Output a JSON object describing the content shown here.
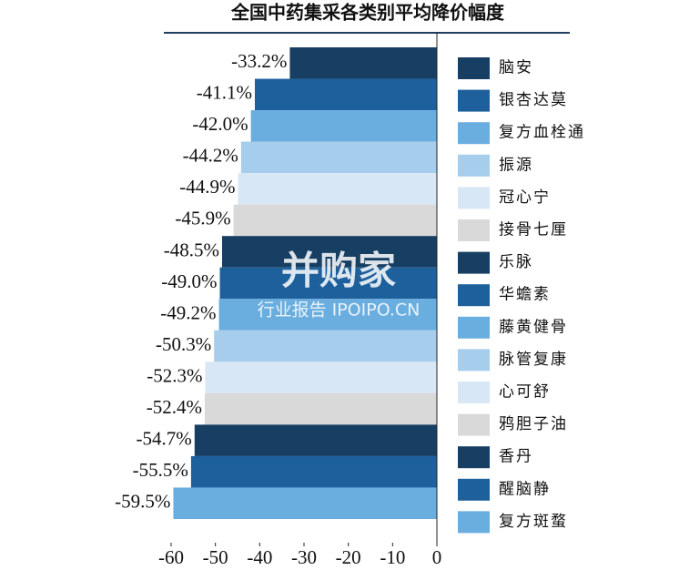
{
  "chart_data": {
    "type": "bar",
    "orientation": "horizontal",
    "title": "全国中药集采各类别平均降价幅度",
    "categories": [
      "脑安",
      "银杏达莫",
      "复方血栓通",
      "振源",
      "冠心宁",
      "接骨七厘",
      "乐脉",
      "华蟾素",
      "藤黄健骨",
      "脉管复康",
      "心可舒",
      "鸦胆子油",
      "香丹",
      "醒脑静",
      "复方斑蝥"
    ],
    "values": [
      -33.2,
      -41.1,
      -42.0,
      -44.2,
      -44.9,
      -45.9,
      -48.5,
      -49.0,
      -49.2,
      -50.3,
      -52.3,
      -52.4,
      -54.7,
      -55.5,
      -59.5
    ],
    "value_labels": [
      "-33.2%",
      "-41.1%",
      "-42.0%",
      "-44.2%",
      "-44.9%",
      "-45.9%",
      "-48.5%",
      "-49.0%",
      "-49.2%",
      "-50.3%",
      "-52.3%",
      "-52.4%",
      "-54.7%",
      "-55.5%",
      "-59.5%"
    ],
    "colors": [
      "#173e63",
      "#1e609b",
      "#6aaee0",
      "#a6cdec",
      "#d8e7f5",
      "#d9d9d9",
      "#173e63",
      "#1e609b",
      "#6aaee0",
      "#a6cdec",
      "#d8e7f5",
      "#d9d9d9",
      "#173e63",
      "#1e609b",
      "#6aaee0"
    ],
    "xlim": [
      -60,
      0
    ],
    "xticks": [
      -60,
      -50,
      -40,
      -30,
      -20,
      -10,
      0
    ],
    "watermark": "并购家",
    "watermark_sub": "行业报告 IPOIPO.CN"
  }
}
